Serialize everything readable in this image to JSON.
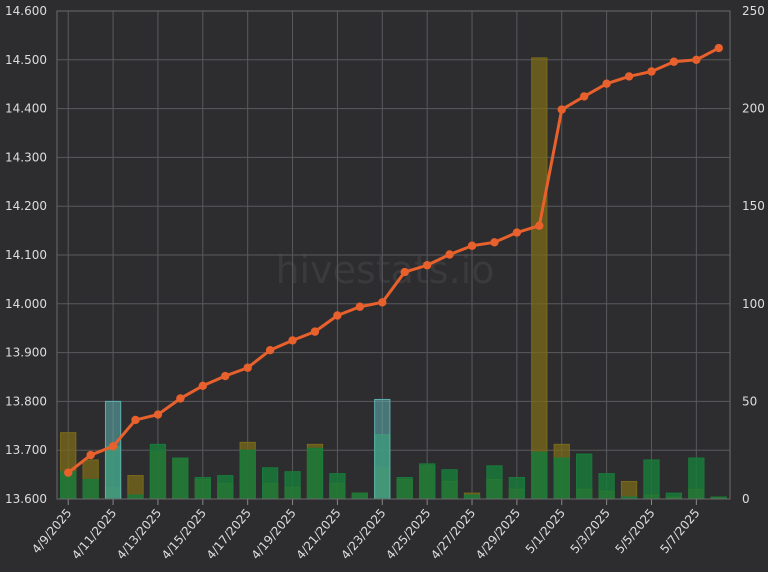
{
  "chart_data": {
    "type": "bar+line",
    "watermark": "hivestats.io",
    "x": [
      "4/9/2025",
      "4/10/2025",
      "4/11/2025",
      "4/12/2025",
      "4/13/2025",
      "4/14/2025",
      "4/15/2025",
      "4/16/2025",
      "4/17/2025",
      "4/18/2025",
      "4/19/2025",
      "4/20/2025",
      "4/21/2025",
      "4/22/2025",
      "4/23/2025",
      "4/24/2025",
      "4/25/2025",
      "4/26/2025",
      "4/27/2025",
      "4/28/2025",
      "4/29/2025",
      "4/30/2025",
      "5/1/2025",
      "5/2/2025",
      "5/3/2025",
      "5/4/2025",
      "5/5/2025",
      "5/6/2025",
      "5/7/2025",
      "5/8/2025"
    ],
    "x_tick_labels": [
      "4/9/2025",
      "4/11/2025",
      "4/13/2025",
      "4/15/2025",
      "4/17/2025",
      "4/19/2025",
      "4/21/2025",
      "4/23/2025",
      "4/25/2025",
      "4/27/2025",
      "4/29/2025",
      "5/1/2025",
      "5/3/2025",
      "5/5/2025",
      "5/7/2025"
    ],
    "y_left": {
      "ticks": [
        "13.600",
        "13.700",
        "13.800",
        "13.900",
        "14.000",
        "14.100",
        "14.200",
        "14.300",
        "14.400",
        "14.500",
        "14.600"
      ],
      "ylim": [
        13.6,
        14.6
      ]
    },
    "y_right": {
      "ticks": [
        "0",
        "50",
        "100",
        "150",
        "200",
        "250"
      ],
      "ylim": [
        0,
        250
      ]
    },
    "line_series": {
      "color": "#e8602c",
      "axis": "left",
      "values": [
        13.654,
        13.69,
        13.708,
        13.762,
        13.773,
        13.806,
        13.832,
        13.852,
        13.869,
        13.905,
        13.925,
        13.943,
        13.976,
        13.994,
        14.003,
        14.065,
        14.079,
        14.101,
        14.119,
        14.126,
        14.146,
        14.16,
        14.398,
        14.425,
        14.451,
        14.466,
        14.476,
        14.496,
        14.5,
        14.524
      ]
    },
    "bar_series": [
      {
        "color": "#7a6a1a",
        "axis": "right",
        "values": [
          34,
          20,
          6,
          12,
          24,
          21,
          10,
          8,
          29,
          8,
          6,
          28,
          8,
          3,
          16,
          10,
          17,
          9,
          3,
          10,
          5,
          226,
          28,
          5,
          4,
          9,
          2,
          1,
          5,
          1
        ]
      },
      {
        "color": "#197a3a",
        "axis": "right",
        "values": [
          14,
          10,
          27,
          2,
          28,
          21,
          11,
          12,
          25,
          16,
          14,
          26,
          13,
          3,
          33,
          11,
          18,
          15,
          2,
          17,
          11,
          24,
          21,
          23,
          13,
          1,
          20,
          3,
          21,
          1
        ]
      },
      {
        "color": "#5fb0b0",
        "axis": "right",
        "values": [
          0,
          0,
          50,
          0,
          0,
          0,
          0,
          0,
          0,
          0,
          0,
          0,
          0,
          0,
          51,
          0,
          0,
          0,
          0,
          0,
          0,
          0,
          0,
          0,
          0,
          0,
          0,
          0,
          0,
          0
        ]
      }
    ],
    "grid": true,
    "legend": "none"
  }
}
